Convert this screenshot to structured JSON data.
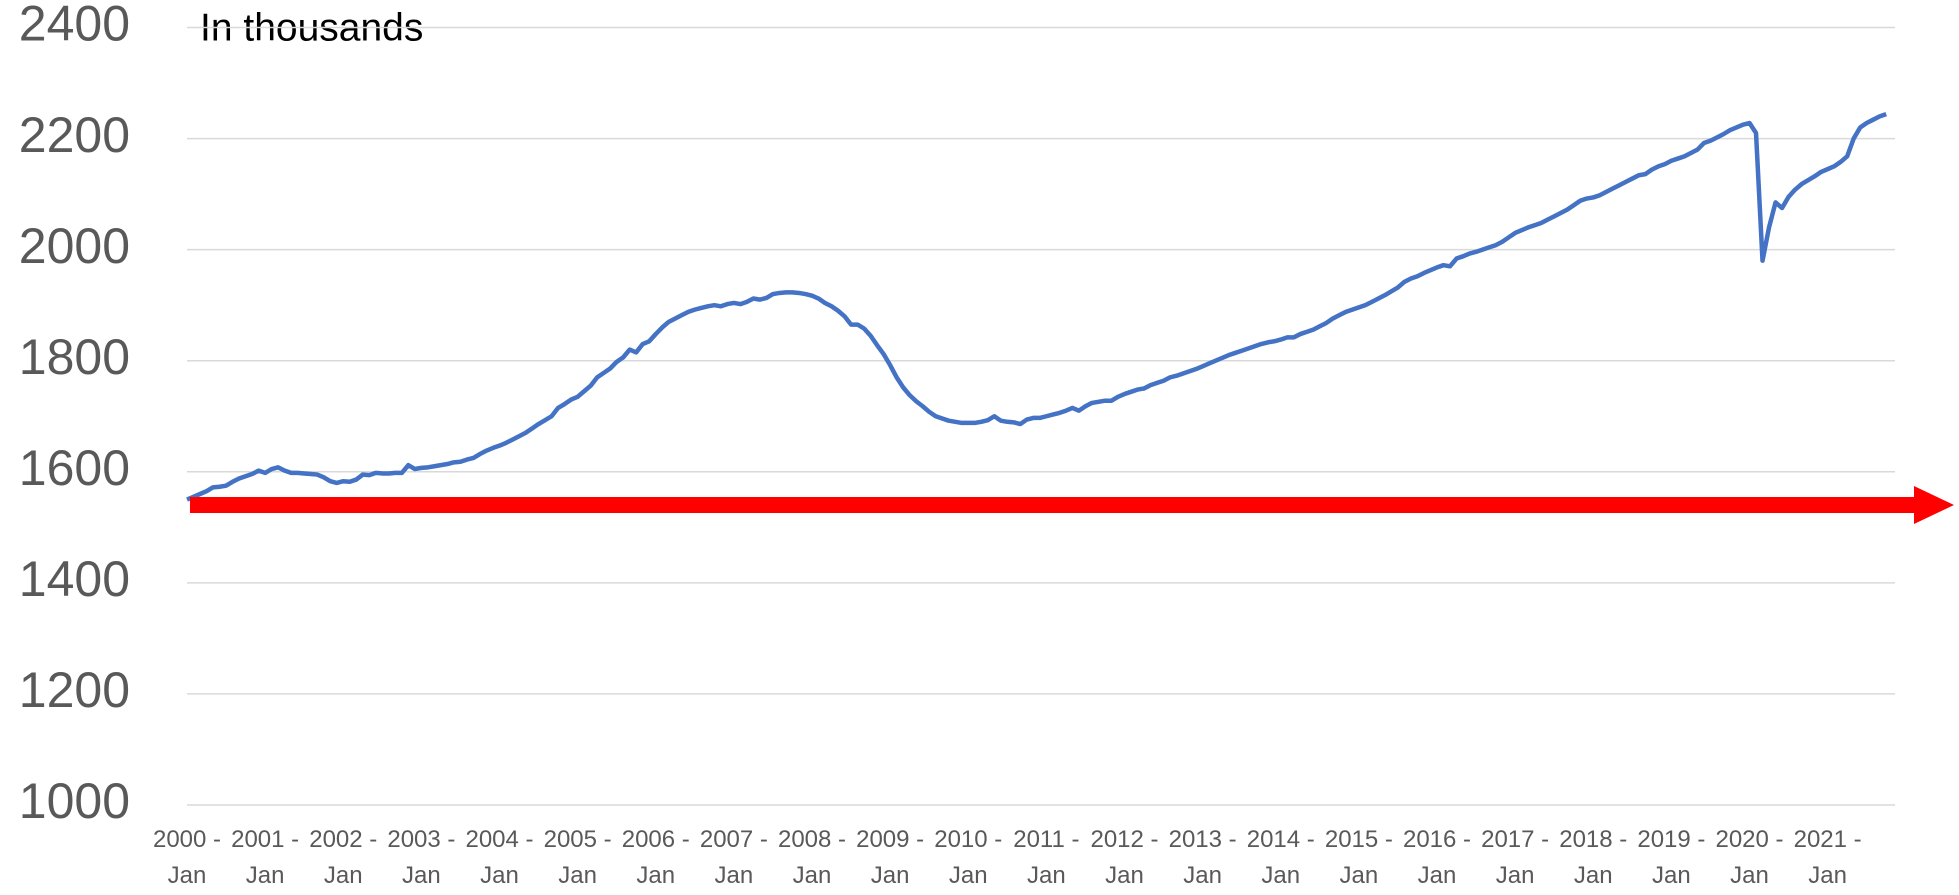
{
  "chart_data": {
    "type": "line",
    "annotation": "In thousands",
    "categories": [
      "2000 - Jan",
      null,
      null,
      null,
      null,
      null,
      null,
      null,
      null,
      null,
      null,
      null,
      "2001 - Jan",
      null,
      null,
      null,
      null,
      null,
      null,
      null,
      null,
      null,
      null,
      null,
      "2002 - Jan",
      null,
      null,
      null,
      null,
      null,
      null,
      null,
      null,
      null,
      null,
      null,
      "2003 - Jan",
      null,
      null,
      null,
      null,
      null,
      null,
      null,
      null,
      null,
      null,
      null,
      "2004 - Jan",
      null,
      null,
      null,
      null,
      null,
      null,
      null,
      null,
      null,
      null,
      null,
      "2005 - Jan",
      null,
      null,
      null,
      null,
      null,
      null,
      null,
      null,
      null,
      null,
      null,
      "2006 - Jan",
      null,
      null,
      null,
      null,
      null,
      null,
      null,
      null,
      null,
      null,
      null,
      "2007 - Jan",
      null,
      null,
      null,
      null,
      null,
      null,
      null,
      null,
      null,
      null,
      null,
      "2008 - Jan",
      null,
      null,
      null,
      null,
      null,
      null,
      null,
      null,
      null,
      null,
      null,
      "2009 - Jan",
      null,
      null,
      null,
      null,
      null,
      null,
      null,
      null,
      null,
      null,
      null,
      "2010 - Jan",
      null,
      null,
      null,
      null,
      null,
      null,
      null,
      null,
      null,
      null,
      null,
      "2011 - Jan",
      null,
      null,
      null,
      null,
      null,
      null,
      null,
      null,
      null,
      null,
      null,
      "2012 - Jan",
      null,
      null,
      null,
      null,
      null,
      null,
      null,
      null,
      null,
      null,
      null,
      "2013 - Jan",
      null,
      null,
      null,
      null,
      null,
      null,
      null,
      null,
      null,
      null,
      null,
      "2014 - Jan",
      null,
      null,
      null,
      null,
      null,
      null,
      null,
      null,
      null,
      null,
      null,
      "2015 - Jan",
      null,
      null,
      null,
      null,
      null,
      null,
      null,
      null,
      null,
      null,
      null,
      "2016 - Jan",
      null,
      null,
      null,
      null,
      null,
      null,
      null,
      null,
      null,
      null,
      null,
      "2017 - Jan",
      null,
      null,
      null,
      null,
      null,
      null,
      null,
      null,
      null,
      null,
      null,
      "2018 - Jan",
      null,
      null,
      null,
      null,
      null,
      null,
      null,
      null,
      null,
      null,
      null,
      "2019 - Jan",
      null,
      null,
      null,
      null,
      null,
      null,
      null,
      null,
      null,
      null,
      null,
      "2020 - Jan",
      null,
      null,
      null,
      null,
      null,
      null,
      null,
      null,
      null,
      null,
      null,
      "2021 - Jan",
      null,
      null,
      null,
      null,
      null,
      null,
      null,
      null,
      null
    ],
    "series": [
      {
        "color": "#4472c4",
        "values": [
          1550,
          1555,
          1560,
          1565,
          1572,
          1573,
          1575,
          1582,
          1588,
          1592,
          1596,
          1602,
          1598,
          1605,
          1608,
          1602,
          1598,
          1598,
          1597,
          1596,
          1595,
          1590,
          1583,
          1580,
          1583,
          1582,
          1586,
          1595,
          1594,
          1598,
          1597,
          1597,
          1598,
          1598,
          1612,
          1605,
          1607,
          1608,
          1610,
          1612,
          1614,
          1617,
          1618,
          1622,
          1625,
          1632,
          1638,
          1643,
          1647,
          1652,
          1658,
          1664,
          1670,
          1678,
          1686,
          1693,
          1700,
          1715,
          1722,
          1730,
          1735,
          1745,
          1755,
          1770,
          1778,
          1786,
          1798,
          1806,
          1820,
          1815,
          1830,
          1835,
          1848,
          1860,
          1870,
          1876,
          1882,
          1888,
          1892,
          1895,
          1898,
          1900,
          1898,
          1902,
          1904,
          1902,
          1906,
          1912,
          1910,
          1913,
          1920,
          1922,
          1923,
          1923,
          1922,
          1920,
          1917,
          1912,
          1904,
          1898,
          1890,
          1880,
          1865,
          1865,
          1858,
          1845,
          1828,
          1812,
          1792,
          1770,
          1752,
          1738,
          1727,
          1718,
          1708,
          1700,
          1696,
          1692,
          1690,
          1688,
          1688,
          1688,
          1690,
          1693,
          1700,
          1692,
          1690,
          1689,
          1686,
          1694,
          1697,
          1697,
          1700,
          1703,
          1706,
          1710,
          1715,
          1710,
          1718,
          1724,
          1726,
          1728,
          1728,
          1735,
          1740,
          1744,
          1748,
          1750,
          1756,
          1760,
          1764,
          1770,
          1773,
          1777,
          1781,
          1785,
          1790,
          1795,
          1800,
          1805,
          1810,
          1814,
          1818,
          1822,
          1826,
          1830,
          1833,
          1835,
          1838,
          1842,
          1842,
          1848,
          1852,
          1856,
          1862,
          1868,
          1876,
          1882,
          1888,
          1892,
          1896,
          1900,
          1906,
          1912,
          1918,
          1925,
          1932,
          1942,
          1948,
          1952,
          1958,
          1963,
          1968,
          1972,
          1970,
          1984,
          1988,
          1993,
          1996,
          2000,
          2004,
          2008,
          2014,
          2022,
          2030,
          2035,
          2040,
          2044,
          2048,
          2054,
          2060,
          2066,
          2072,
          2080,
          2088,
          2092,
          2094,
          2098,
          2104,
          2110,
          2116,
          2122,
          2128,
          2134,
          2136,
          2144,
          2150,
          2154,
          2160,
          2164,
          2168,
          2174,
          2180,
          2192,
          2196,
          2202,
          2208,
          2215,
          2220,
          2225,
          2228,
          2210,
          1980,
          2040,
          2085,
          2075,
          2095,
          2108,
          2118,
          2125,
          2132,
          2140,
          2145,
          2150,
          2158,
          2168,
          2200,
          2220,
          2228,
          2234,
          2240,
          2244
        ]
      }
    ],
    "ylim": [
      1000,
      2400
    ],
    "yticks": [
      1000,
      1200,
      1400,
      1600,
      1800,
      2000,
      2200,
      2400
    ],
    "grid": true
  }
}
